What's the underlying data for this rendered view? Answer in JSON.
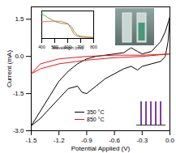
{
  "chart_data": [
    {
      "type": "line",
      "x_label": "Potential Applied (V)",
      "y_label": "Current (mA)",
      "xlim": [
        -1.5,
        0
      ],
      "ylim": [
        -3,
        2
      ],
      "xticks": [
        -1.5,
        -1.2,
        -0.9,
        -0.6,
        -0.3,
        {
          "value": 0,
          "label": "0.0"
        }
      ],
      "yticks": [
        {
          "value": -3,
          "label": "-3.0"
        },
        -1.5,
        {
          "value": 0,
          "label": "0.0"
        },
        1.5
      ],
      "legend": "lower left",
      "series": [
        {
          "name": "350 °C",
          "color": "#000000",
          "x": [
            0,
            -0.02,
            -0.05,
            -0.1,
            -0.2,
            -0.3,
            -0.35,
            -0.42,
            -0.5,
            -0.6,
            -0.7,
            -0.8,
            -0.9,
            -0.95,
            -1.0,
            -1.1,
            -1.2,
            -1.3,
            -1.4,
            -1.5,
            -1.4,
            -1.3,
            -1.2,
            -1.1,
            -1.0,
            -0.9,
            -0.8,
            -0.7,
            -0.6,
            -0.5,
            -0.42,
            -0.35,
            -0.3,
            -0.2,
            -0.1,
            -0.05,
            0
          ],
          "values": [
            1.6,
            0.6,
            0.0,
            -0.2,
            -0.3,
            -0.4,
            -0.55,
            -0.4,
            -0.5,
            -0.7,
            -0.9,
            -1.2,
            -1.5,
            -1.45,
            -1.2,
            -1.3,
            -1.7,
            -2.1,
            -2.5,
            -2.8,
            -2.2,
            -1.6,
            -1.0,
            -0.6,
            -0.3,
            -0.1,
            0.0,
            0.05,
            0.1,
            0.15,
            0.35,
            0.2,
            0.1,
            0.2,
            0.6,
            1.0,
            1.6
          ]
        },
        {
          "name": "850 °C",
          "color": "#e41a1c",
          "x": [
            0,
            -0.3,
            -0.6,
            -0.9,
            -1.2,
            -1.4,
            -1.5,
            -1.4,
            -1.2,
            -0.9,
            -0.6,
            -0.3,
            0
          ],
          "values": [
            0.1,
            0.0,
            -0.05,
            -0.15,
            -0.3,
            -0.5,
            -0.7,
            -0.3,
            -0.1,
            0.0,
            0.05,
            0.05,
            0.1
          ]
        }
      ]
    },
    {
      "type": "line",
      "x_label": "Wavelength (nm)",
      "xlim": [
        400,
        800
      ],
      "ylim": [
        0,
        1
      ],
      "xticks": [
        400,
        500,
        600,
        700,
        800
      ],
      "tick_labels": "x",
      "series": [
        {
          "color": "#2ca02c",
          "x": [
            400,
            450,
            500,
            550,
            600,
            625,
            650,
            675,
            700,
            750,
            800
          ],
          "values": [
            0.9,
            0.75,
            0.62,
            0.55,
            0.52,
            0.45,
            0.25,
            0.12,
            0.08,
            0.05,
            0.04
          ]
        },
        {
          "color": "#e8501c",
          "x": [
            400,
            450,
            500,
            550,
            600,
            625,
            650,
            675,
            700,
            750,
            800
          ],
          "values": [
            0.6,
            0.62,
            0.63,
            0.62,
            0.55,
            0.35,
            0.15,
            0.08,
            0.05,
            0.04,
            0.03
          ]
        }
      ]
    },
    {
      "type": "bar",
      "categories": [
        null,
        null,
        null,
        null,
        null
      ],
      "values": [
        0.9,
        0.9,
        0.9,
        0.9,
        0.9
      ],
      "color": "#7b3fa0",
      "ylim": [
        0,
        1
      ],
      "tick_labels": false
    }
  ]
}
